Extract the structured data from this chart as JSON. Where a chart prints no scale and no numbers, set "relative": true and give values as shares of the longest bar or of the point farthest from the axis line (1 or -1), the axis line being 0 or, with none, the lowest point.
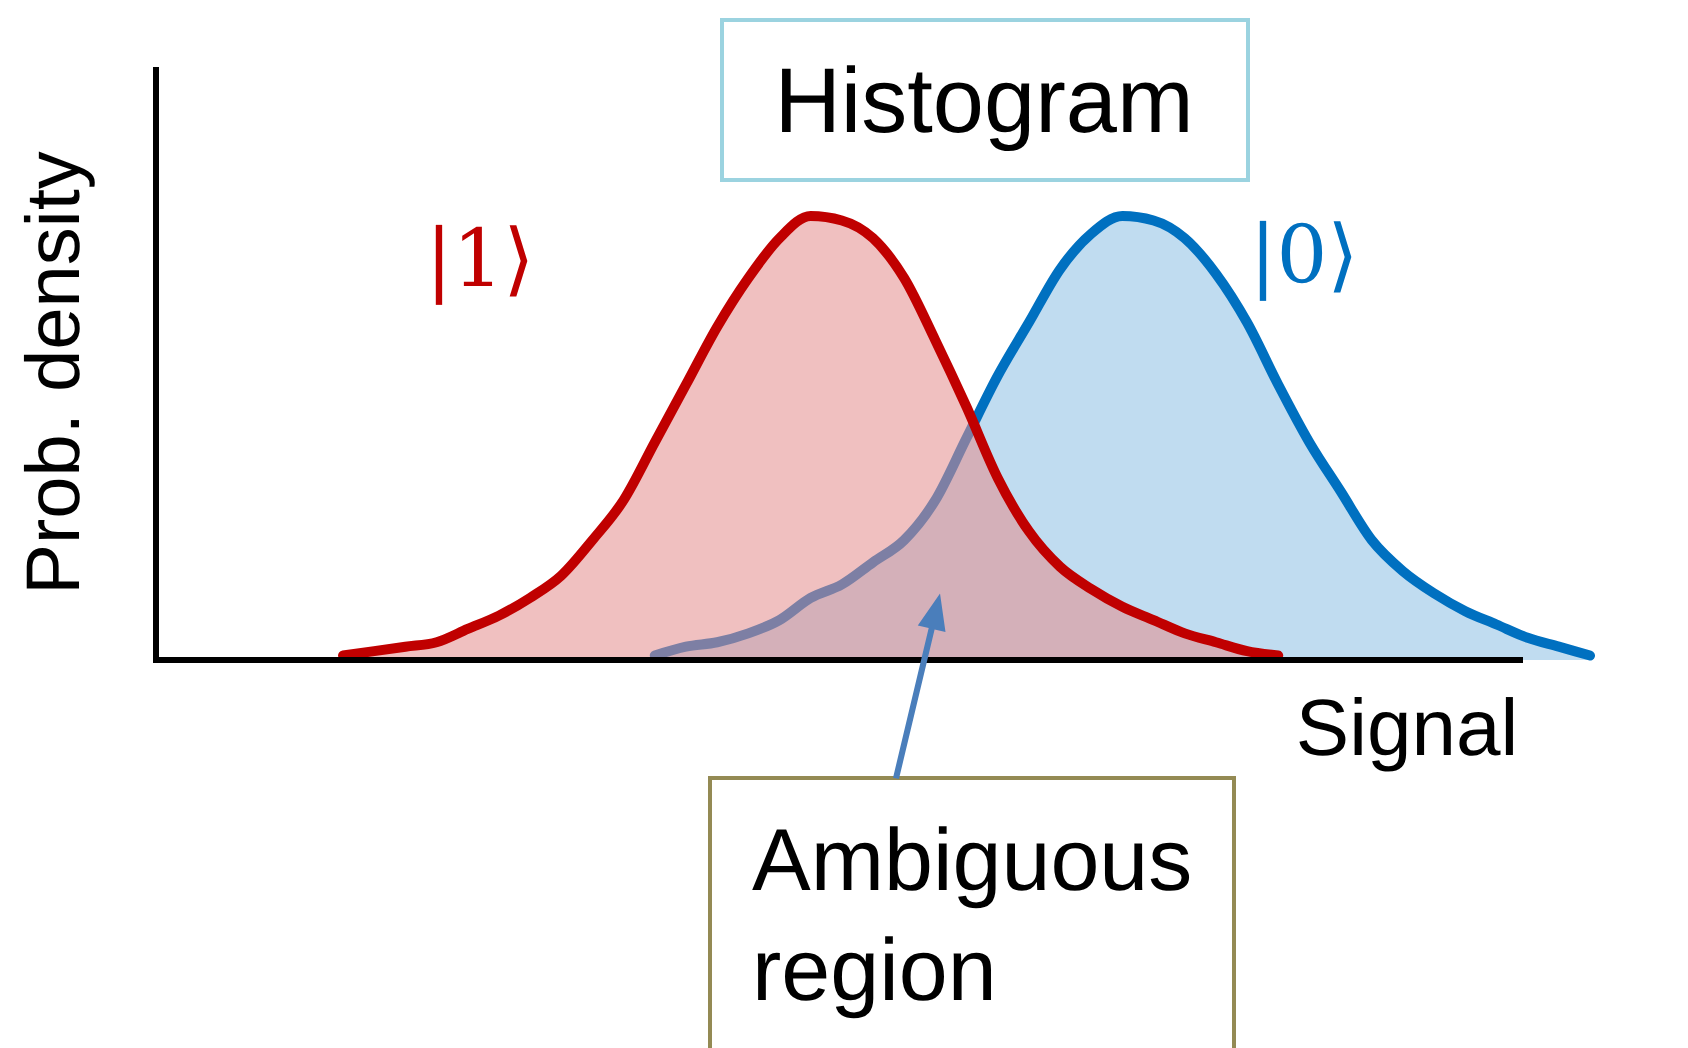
{
  "chart_data": {
    "type": "area",
    "title": "Histogram",
    "xlabel": "Signal",
    "ylabel": "Prob. density",
    "annotations": [
      "Ambiguous region"
    ],
    "relative": true,
    "categories": [
      null,
      null,
      null,
      null,
      null,
      null,
      null,
      null,
      null,
      null,
      null,
      null,
      null,
      null,
      null,
      null,
      null,
      null,
      null,
      null,
      null,
      null,
      null,
      null,
      null,
      null,
      null,
      null,
      null,
      null,
      null,
      null,
      null,
      null,
      null,
      null,
      null,
      null,
      null,
      null,
      null,
      null,
      null,
      null,
      null,
      null,
      null
    ],
    "series": [
      {
        "name": "|0⟩",
        "color": "#0070c0",
        "values": [
          null,
          null,
          null,
          null,
          null,
          null,
          null,
          null,
          null,
          null,
          null,
          null,
          null,
          null,
          null,
          null,
          0.01,
          0.03,
          0.04,
          0.06,
          0.09,
          0.14,
          0.17,
          0.22,
          0.27,
          0.36,
          0.5,
          0.64,
          0.76,
          0.88,
          0.96,
          1.0,
          0.99,
          0.95,
          0.87,
          0.76,
          0.62,
          0.49,
          0.38,
          0.27,
          0.2,
          0.15,
          0.11,
          0.08,
          0.05,
          0.03,
          0.01
        ]
      },
      {
        "name": "|1⟩",
        "color": "#c00000",
        "values": [
          null,
          null,
          null,
          null,
          null,
          null,
          0.01,
          0.02,
          0.03,
          0.04,
          0.07,
          0.1,
          0.14,
          0.19,
          0.27,
          0.36,
          0.49,
          0.62,
          0.75,
          0.86,
          0.95,
          1.0,
          0.99,
          0.95,
          0.86,
          0.72,
          0.57,
          0.41,
          0.29,
          0.21,
          0.16,
          0.12,
          0.09,
          0.06,
          0.04,
          0.02,
          0.01,
          null,
          null,
          null,
          null,
          null,
          null,
          null,
          null,
          null,
          null
        ]
      }
    ]
  }
}
